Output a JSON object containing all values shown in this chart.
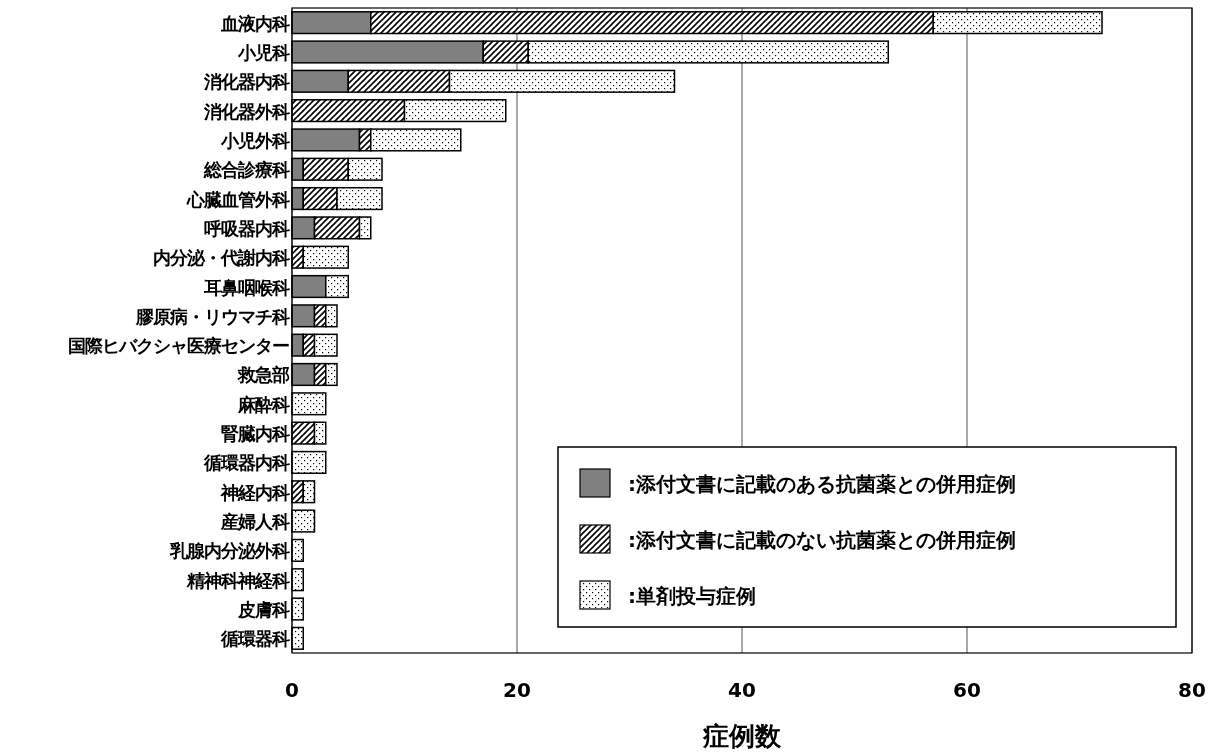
{
  "chart_data": {
    "type": "bar",
    "orientation": "horizontal",
    "stacked": true,
    "xlabel": "症例数",
    "categories": [
      "血液内科",
      "小児科",
      "消化器内科",
      "消化器外科",
      "小児外科",
      "総合診療科",
      "心臓血管外科",
      "呼吸器内科",
      "内分泌・代謝内科",
      "耳鼻咽喉科",
      "膠原病・リウマチ科",
      "国際ヒバクシャ医療センター",
      "救急部",
      "麻酔科",
      "腎臓内科",
      "循環器内科",
      "神経内科",
      "産婦人科",
      "乳腺内分泌外科",
      "精神科神経科",
      "皮膚科",
      "循環器科"
    ],
    "series": [
      {
        "name": ":添付文書に記載のある抗菌薬との併用症例",
        "color": "#808080",
        "values": [
          7,
          17,
          5,
          0,
          6,
          1,
          1,
          2,
          0,
          3,
          2,
          1,
          2,
          0,
          0,
          0,
          0,
          0,
          0,
          0,
          0,
          0
        ]
      },
      {
        "name": ":添付文書に記載のない抗菌薬との併用症例",
        "color": "#000000",
        "values": [
          50,
          4,
          9,
          10,
          1,
          4,
          3,
          4,
          1,
          0,
          1,
          1,
          1,
          0,
          2,
          0,
          1,
          0,
          0,
          0,
          0,
          0
        ]
      },
      {
        "name": ":単剤投与症例",
        "color": "#000000",
        "values": [
          15,
          32,
          20,
          9,
          8,
          3,
          4,
          1,
          4,
          2,
          1,
          2,
          1,
          3,
          1,
          3,
          1,
          2,
          1,
          1,
          1,
          1
        ]
      }
    ],
    "xlim": [
      0,
      80
    ],
    "xticks": [
      0,
      20,
      40,
      60,
      80
    ],
    "grid": "x",
    "legend": "bottom right"
  }
}
